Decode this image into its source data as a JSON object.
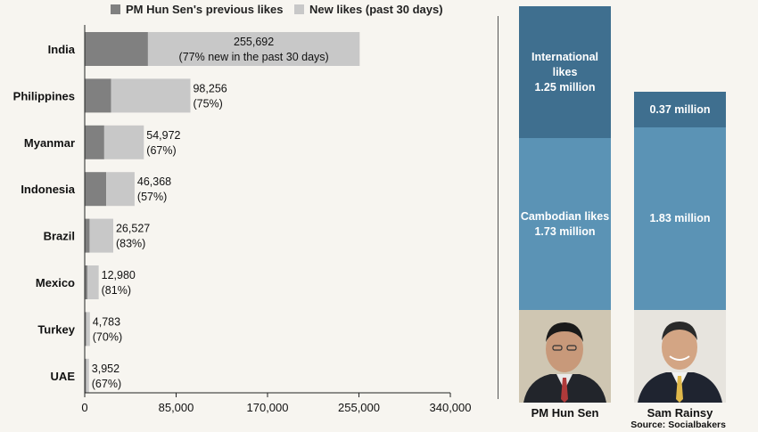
{
  "legend": {
    "previous": "PM Hun Sen's previous likes",
    "new": "New likes (past 30 days)"
  },
  "colors": {
    "previous": "#808080",
    "new": "#c8c8c8",
    "international": "#3f6f8f",
    "cambodian": "#5b93b5"
  },
  "chart_data": [
    {
      "type": "bar",
      "orientation": "horizontal",
      "stacked": true,
      "title": "",
      "xlabel": "",
      "ylabel": "",
      "categories": [
        "India",
        "Philippines",
        "Myanmar",
        "Indonesia",
        "Brazil",
        "Mexico",
        "Turkey",
        "UAE"
      ],
      "totals": [
        255692,
        98256,
        54972,
        46368,
        26527,
        12980,
        4783,
        3952
      ],
      "series": [
        {
          "name": "PM Hun Sen's previous likes",
          "values": [
            58809,
            24564,
            18141,
            19938,
            4510,
            2466,
            1435,
            1304
          ]
        },
        {
          "name": "New likes (past 30 days)",
          "values": [
            196883,
            73692,
            36831,
            26430,
            22017,
            10514,
            3348,
            2648
          ]
        }
      ],
      "labels": [
        [
          "255,692",
          "(77% new in the past 30 days)"
        ],
        [
          "98,256",
          "(75%)"
        ],
        [
          "54,972",
          "(67%)"
        ],
        [
          "46,368",
          "(57%)"
        ],
        [
          "26,527",
          "(83%)"
        ],
        [
          "12,980",
          "(81%)"
        ],
        [
          "4,783",
          "(70%)"
        ],
        [
          "3,952",
          "(67%)"
        ]
      ],
      "xlim": [
        0,
        340000
      ],
      "xticks": [
        0,
        85000,
        170000,
        255000,
        340000
      ],
      "xtick_labels": [
        "0",
        "85,000",
        "170,000",
        "255,000",
        "340,000"
      ],
      "grid": false,
      "legend_position": "top"
    },
    {
      "type": "bar",
      "orientation": "vertical",
      "stacked": true,
      "categories": [
        "PM Hun Sen",
        "Sam Rainsy"
      ],
      "unit": "million",
      "series": [
        {
          "name": "Cambodian likes",
          "values": [
            1.73,
            1.83
          ]
        },
        {
          "name": "International likes",
          "values": [
            1.25,
            0.37
          ]
        }
      ]
    }
  ],
  "right_panel": {
    "hun_sen": {
      "intl_line1": "International likes",
      "intl_line2": "1.25 million",
      "dom_line1": "Cambodian likes",
      "dom_line2": "1.73 million",
      "name": "PM Hun Sen"
    },
    "rainsy": {
      "intl_line1": "0.37 million",
      "dom_line1": "1.83 million",
      "name": "Sam Rainsy"
    },
    "source": "Source: Socialbakers"
  }
}
